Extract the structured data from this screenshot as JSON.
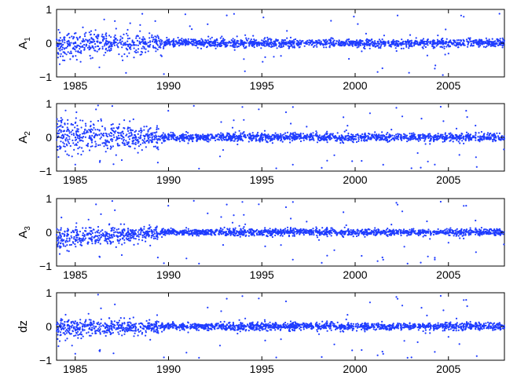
{
  "colors": {
    "series": "#1f3cff",
    "axes": "#000000",
    "background": "#ffffff"
  },
  "chart_data": [
    {
      "type": "scatter",
      "ylabel": "A",
      "ylabel_sub": "1",
      "xlim": [
        1984,
        2008
      ],
      "ylim": [
        -1,
        1
      ],
      "xticks": [
        1985,
        1990,
        1995,
        2000,
        2005
      ],
      "yticks": [
        -1,
        0,
        1
      ],
      "noise": {
        "start": 1984,
        "end": 1989.5,
        "spread_early": 0.45,
        "spread_late": 0.12,
        "bias": -0.05
      }
    },
    {
      "type": "scatter",
      "ylabel": "A",
      "ylabel_sub": "2",
      "xlim": [
        1984,
        2008
      ],
      "ylim": [
        -1,
        1
      ],
      "xticks": [
        1985,
        1990,
        1995,
        2000,
        2005
      ],
      "yticks": [
        -1,
        0,
        1
      ],
      "noise": {
        "start": 1984,
        "end": 1989.5,
        "spread_early": 0.55,
        "spread_late": 0.12,
        "bias": 0.08
      }
    },
    {
      "type": "scatter",
      "ylabel": "A",
      "ylabel_sub": "3",
      "xlim": [
        1984,
        2008
      ],
      "ylim": [
        -1,
        1
      ],
      "xticks": [
        1985,
        1990,
        1995,
        2000,
        2005
      ],
      "yticks": [
        -1,
        0,
        1
      ],
      "noise": {
        "start": 1984,
        "end": 1989.5,
        "spread_early": 0.35,
        "spread_late": 0.1,
        "bias": -0.2
      }
    },
    {
      "type": "scatter",
      "ylabel": "dz",
      "ylabel_sub": "",
      "xlim": [
        1984,
        2008
      ],
      "ylim": [
        -1,
        1
      ],
      "xticks": [
        1985,
        1990,
        1995,
        2000,
        2005
      ],
      "yticks": [
        -1,
        0,
        1
      ],
      "noise": {
        "start": 1984,
        "end": 1989.5,
        "spread_early": 0.3,
        "spread_late": 0.11,
        "bias": -0.05
      }
    }
  ]
}
